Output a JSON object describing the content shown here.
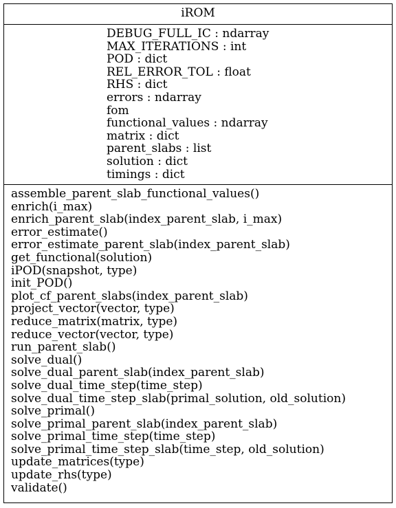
{
  "class_name": "iROM",
  "attributes": [
    "DEBUG_FULL_IC : ndarray",
    "MAX_ITERATIONS : int",
    "POD : dict",
    "REL_ERROR_TOL : float",
    "RHS : dict",
    "errors : ndarray",
    "fom",
    "functional_values : ndarray",
    "matrix : dict",
    "parent_slabs : list",
    "solution : dict",
    "timings : dict"
  ],
  "methods": [
    "assemble_parent_slab_functional_values()",
    "enrich(i_max)",
    "enrich_parent_slab(index_parent_slab, i_max)",
    "error_estimate()",
    "error_estimate_parent_slab(index_parent_slab)",
    "get_functional(solution)",
    "iPOD(snapshot, type)",
    "init_POD()",
    "plot_cf_parent_slabs(index_parent_slab)",
    "project_vector(vector, type)",
    "reduce_matrix(matrix, type)",
    "reduce_vector(vector, type)",
    "run_parent_slab()",
    "solve_dual()",
    "solve_dual_parent_slab(index_parent_slab)",
    "solve_dual_time_step(time_step)",
    "solve_dual_time_step_slab(primal_solution, old_solution)",
    "solve_primal()",
    "solve_primal_parent_slab(index_parent_slab)",
    "solve_primal_time_step(time_step)",
    "solve_primal_time_step_slab(time_step, old_solution)",
    "update_matrices(type)",
    "update_rhs(type)",
    "validate()"
  ]
}
